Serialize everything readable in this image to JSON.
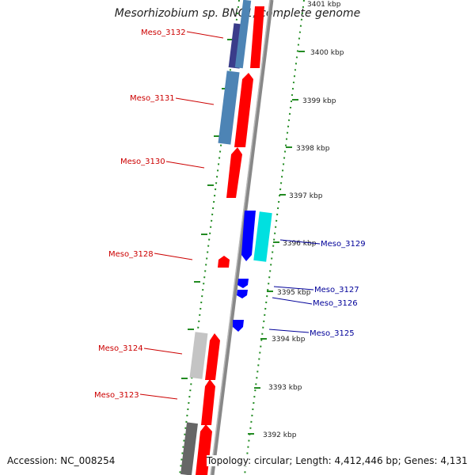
{
  "title": "Mesorhizobium sp. BNC1, complete genome",
  "footer": {
    "accession_label": "Accession:",
    "accession": "NC_008254",
    "topology_label": "Topology:",
    "topology": "circular",
    "length_label": "Length:",
    "length": "4,412,446 bp",
    "genes_label": "Genes:",
    "genes": "4,131"
  },
  "colors": {
    "forward_strand": "#ff0000",
    "reverse_strand": "#0000ff",
    "forward_label": "#cc0000",
    "reverse_label": "#000099",
    "tick": "#228b22",
    "backbone": "#888888",
    "cog_dark_blue": "#3a3c8a",
    "cog_steel_blue": "#4d84b5",
    "cog_cyan": "#00e0e0",
    "cog_silver": "#c4c4c4",
    "cog_dark_gray": "#666666"
  },
  "ruler": {
    "unit": "kbp",
    "ticks": [
      "3401 kbp",
      "3400 kbp",
      "3399 kbp",
      "3398 kbp",
      "3397 kbp",
      "3396 kbp",
      "3395 kbp",
      "3394 kbp",
      "3393 kbp",
      "3392 kbp"
    ]
  },
  "genes": {
    "forward": [
      "Meso_3132",
      "Meso_3131",
      "Meso_3130",
      "Meso_3128",
      "Meso_3124",
      "Meso_3123"
    ],
    "reverse": [
      "Meso_3129",
      "Meso_3127",
      "Meso_3126",
      "Meso_3125"
    ]
  }
}
